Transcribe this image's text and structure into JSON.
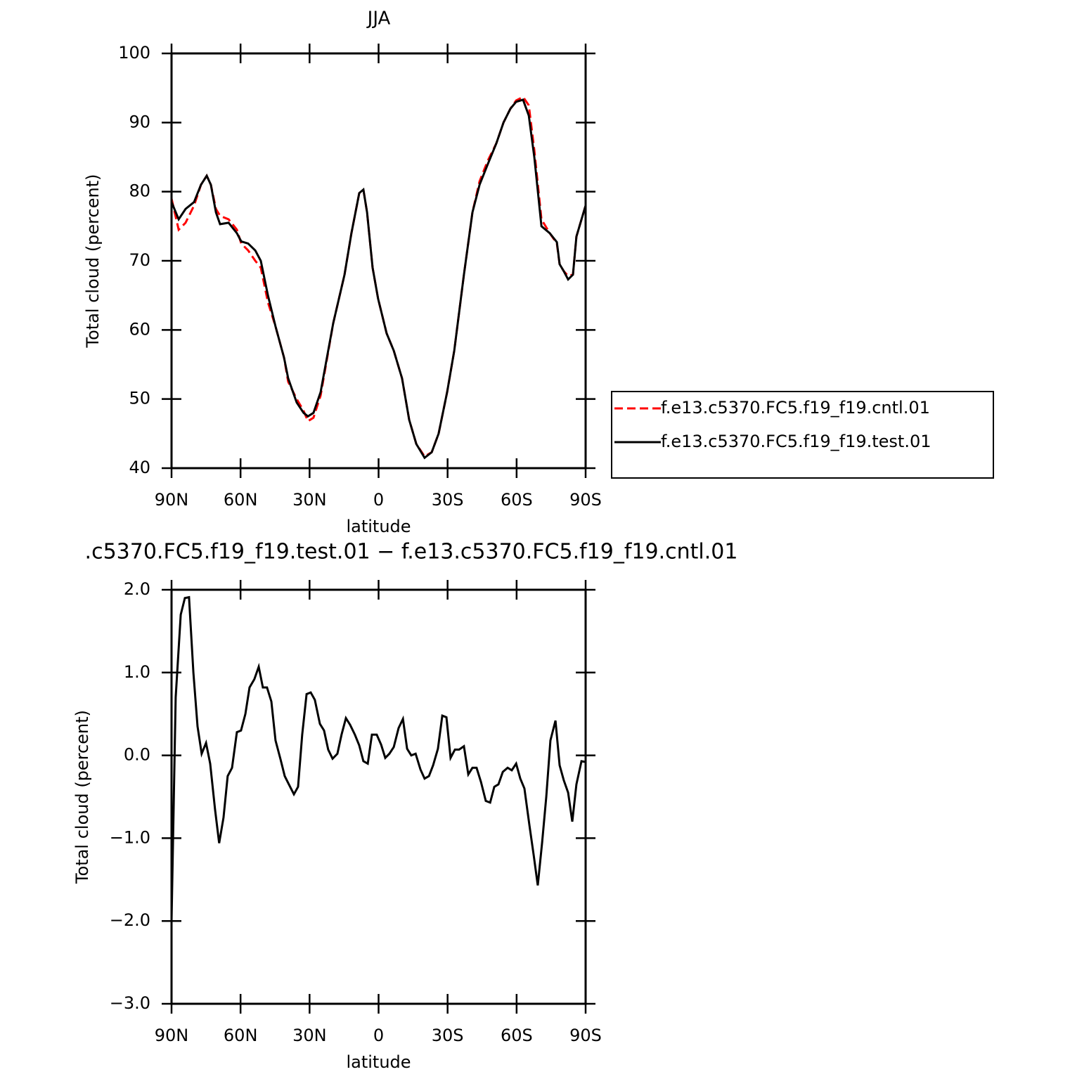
{
  "chart_data": [
    {
      "type": "line",
      "title": "JJA",
      "xlabel": "latitude",
      "ylabel": "Total cloud (percent)",
      "x": [
        90,
        86.9,
        83.9,
        80.2,
        77.2,
        74.7,
        72.9,
        70.7,
        68.9,
        65.2,
        61.6,
        59.7,
        56.7,
        53.6,
        51.2,
        48.1,
        44.8,
        41.1,
        39.3,
        35.6,
        32.6,
        30.7,
        28.3,
        25.2,
        19.7,
        14.8,
        11.8,
        8.4,
        6.6,
        5.0,
        2.6,
        0.2,
        -3.5,
        -6.6,
        -10.2,
        -13.3,
        -16.4,
        -20.0,
        -23.1,
        -26.1,
        -29.8,
        -32.9,
        -37.1,
        -40.8,
        -43.9,
        -47.5,
        -51.2,
        -54.3,
        -57.3,
        -59.8,
        -62.8,
        -65.3,
        -67.7,
        -70.8,
        -74.4,
        -77.5,
        -78.7,
        -80.5,
        -82.4,
        -84.5,
        -86.0,
        -90
      ],
      "series": [
        {
          "name": "f.e13.c5370.FC5.f19_f19.cntl.01",
          "color": "#ff0000",
          "line_style": "dashed",
          "values": [
            79,
            74.5,
            75.5,
            78,
            81,
            82.3,
            81,
            77.5,
            76.5,
            76,
            74.5,
            72.5,
            71.5,
            70,
            69,
            64,
            60.5,
            56,
            52.5,
            50,
            48.3,
            46.8,
            47.3,
            50.5,
            61,
            68,
            74,
            79.8,
            80.3,
            77,
            69,
            64.5,
            59.5,
            57,
            53,
            47,
            43.5,
            41.7,
            42.3,
            45,
            51,
            57,
            68,
            77,
            81.5,
            84.5,
            87,
            90,
            92,
            93.2,
            93.7,
            92.5,
            86,
            76,
            74,
            72.5,
            69.5,
            68.5,
            67.8,
            68,
            73.5,
            78
          ]
        },
        {
          "name": "f.e13.c5370.FC5.f19_f19.test.01",
          "color": "#000000",
          "line_style": "solid",
          "values": [
            78.5,
            76,
            77.5,
            78.5,
            81,
            82.3,
            81,
            77,
            75.3,
            75.5,
            74,
            72.8,
            72.5,
            71.5,
            70,
            65,
            60.5,
            56,
            53,
            49.5,
            48,
            47.5,
            48,
            51,
            61,
            68,
            74,
            79.8,
            80.3,
            77,
            69,
            64.5,
            59.5,
            57,
            53,
            47,
            43.5,
            41.5,
            42.3,
            45,
            51,
            57,
            68,
            77,
            81,
            84,
            87,
            90,
            92,
            93,
            93.3,
            91,
            85,
            75,
            74,
            72.7,
            69.5,
            68.5,
            67.3,
            68,
            73.5,
            78
          ]
        }
      ],
      "xlim": [
        90,
        -90
      ],
      "xticks": [
        {
          "value": 90,
          "label": "90N"
        },
        {
          "value": 60,
          "label": "60N"
        },
        {
          "value": 30,
          "label": "30N"
        },
        0,
        {
          "value": -30,
          "label": "30S"
        },
        {
          "value": -60,
          "label": "60S"
        },
        {
          "value": -90,
          "label": "90S"
        }
      ],
      "ylim": [
        40,
        100
      ],
      "yticks": [
        40,
        50,
        60,
        70,
        80,
        90,
        100
      ]
    },
    {
      "type": "line",
      "title": ".c5370.FC5.f19_f19.test.01 − f.e13.c5370.FC5.f19_f19.cntl.01",
      "xlabel": "latitude",
      "ylabel": "Total cloud (percent)",
      "x": [
        90.0,
        88.2,
        86.0,
        84.2,
        82.4,
        80.5,
        78.7,
        76.9,
        75.0,
        73.2,
        71.1,
        69.3,
        67.4,
        65.6,
        63.7,
        61.6,
        59.8,
        57.9,
        56.1,
        54.0,
        52.1,
        50.3,
        48.5,
        46.6,
        44.8,
        42.6,
        40.8,
        39.0,
        36.8,
        35.0,
        33.2,
        31.3,
        29.5,
        27.7,
        25.5,
        23.7,
        21.9,
        20.0,
        17.9,
        16.1,
        14.2,
        12.4,
        10.3,
        8.4,
        6.6,
        4.7,
        2.9,
        0.8,
        -1.1,
        -2.9,
        -4.7,
        -6.6,
        -8.7,
        -10.6,
        -12.4,
        -14.2,
        -16.1,
        -18.2,
        -20.0,
        -21.9,
        -23.7,
        -25.8,
        -27.7,
        -29.5,
        -31.3,
        -33.2,
        -35.0,
        -37.1,
        -39.0,
        -40.8,
        -42.6,
        -44.5,
        -46.6,
        -48.5,
        -50.3,
        -52.1,
        -54.0,
        -56.1,
        -57.9,
        -59.8,
        -61.6,
        -63.4,
        -65.6,
        -67.4,
        -69.2,
        -71.1,
        -72.9,
        -74.7,
        -76.9,
        -78.7,
        -80.5,
        -82.4,
        -84.2,
        -86.0,
        -88.2,
        -90.0
      ],
      "series": [
        {
          "color": "#000000",
          "line_style": "solid",
          "values": [
            -2.0,
            0.7,
            1.7,
            1.9,
            1.91,
            1.0,
            0.35,
            0.02,
            0.15,
            -0.1,
            -0.65,
            -1.06,
            -0.75,
            -0.25,
            -0.15,
            0.28,
            0.3,
            0.5,
            0.82,
            0.92,
            1.07,
            0.82,
            0.82,
            0.65,
            0.18,
            -0.05,
            -0.25,
            -0.35,
            -0.47,
            -0.38,
            0.25,
            0.74,
            0.76,
            0.67,
            0.38,
            0.3,
            0.07,
            -0.04,
            0.02,
            0.25,
            0.45,
            0.37,
            0.25,
            0.12,
            -0.07,
            -0.1,
            0.25,
            0.25,
            0.13,
            -0.03,
            0.02,
            0.1,
            0.33,
            0.44,
            0.08,
            0,
            0.02,
            -0.17,
            -0.28,
            -0.25,
            -0.12,
            0.08,
            0.48,
            0.46,
            -0.03,
            0.07,
            0.07,
            0.11,
            -0.23,
            -0.15,
            -0.15,
            -0.32,
            -0.55,
            -0.57,
            -0.38,
            -0.35,
            -0.2,
            -0.15,
            -0.18,
            -0.1,
            -0.28,
            -0.4,
            -0.85,
            -1.2,
            -1.57,
            -1.05,
            -0.5,
            0.18,
            0.42,
            -0.12,
            -0.3,
            -0.45,
            -0.8,
            -0.35,
            -0.07,
            -0.08
          ]
        }
      ],
      "xlim": [
        90,
        -90
      ],
      "xticks": [
        {
          "value": 90,
          "label": "90N"
        },
        {
          "value": 60,
          "label": "60N"
        },
        {
          "value": 30,
          "label": "30N"
        },
        0,
        {
          "value": -30,
          "label": "30S"
        },
        {
          "value": -60,
          "label": "60S"
        },
        {
          "value": -90,
          "label": "90S"
        }
      ],
      "ylim": [
        -3,
        2
      ],
      "yticks": [
        {
          "value": -3,
          "label": "−3.0"
        },
        {
          "value": -2,
          "label": "−2.0"
        },
        {
          "value": -1,
          "label": "−1.0"
        },
        {
          "value": 0,
          "label": "0.0"
        },
        {
          "value": 1,
          "label": "1.0"
        },
        {
          "value": 2,
          "label": "2.0"
        }
      ]
    }
  ]
}
